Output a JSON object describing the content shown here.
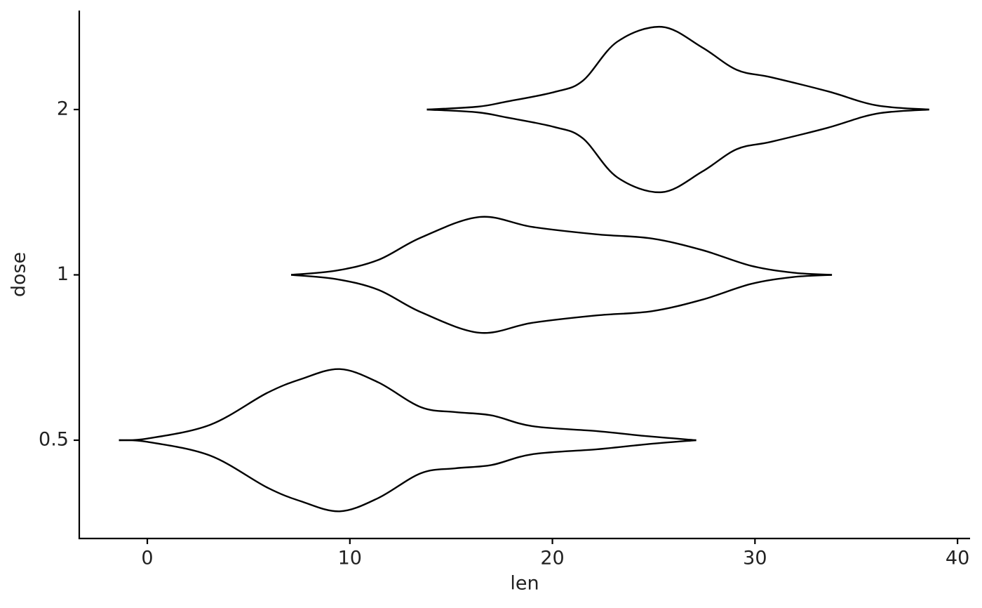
{
  "chart_data": {
    "type": "violin",
    "orientation": "horizontal",
    "x_label": "len",
    "y_label": "dose",
    "categories": [
      "0.5",
      "1",
      "2"
    ],
    "xlim": [
      -3.36,
      40.62
    ],
    "xticks": [
      0,
      10,
      20,
      30,
      40
    ],
    "color": "#000000",
    "grid": false,
    "violins": [
      {
        "x": [
          -1.4,
          0,
          3.1,
          5.9,
          7.6,
          9.5,
          11.4,
          13.5,
          15.2,
          17,
          19,
          22.2,
          24.6,
          27.1
        ],
        "half_width": [
          0,
          0.01,
          0.093,
          0.285,
          0.37,
          0.43,
          0.35,
          0.2,
          0.17,
          0.15,
          0.085,
          0.055,
          0.025,
          0
        ]
      },
      {
        "x": [
          7.1,
          9.3,
          11.4,
          13.5,
          16.4,
          19,
          22.2,
          24.9,
          27.4,
          29.8,
          31.9,
          33.8
        ],
        "half_width": [
          0,
          0.025,
          0.09,
          0.225,
          0.35,
          0.29,
          0.245,
          0.22,
          0.15,
          0.055,
          0.013,
          0
        ]
      },
      {
        "x": [
          13.8,
          16.3,
          17.7,
          20.1,
          21.5,
          23.2,
          25.4,
          27.4,
          29.1,
          30.8,
          33.6,
          36,
          38.6
        ],
        "half_width": [
          0,
          0.017,
          0.047,
          0.106,
          0.174,
          0.41,
          0.5,
          0.375,
          0.24,
          0.195,
          0.11,
          0.025,
          0
        ]
      }
    ]
  }
}
